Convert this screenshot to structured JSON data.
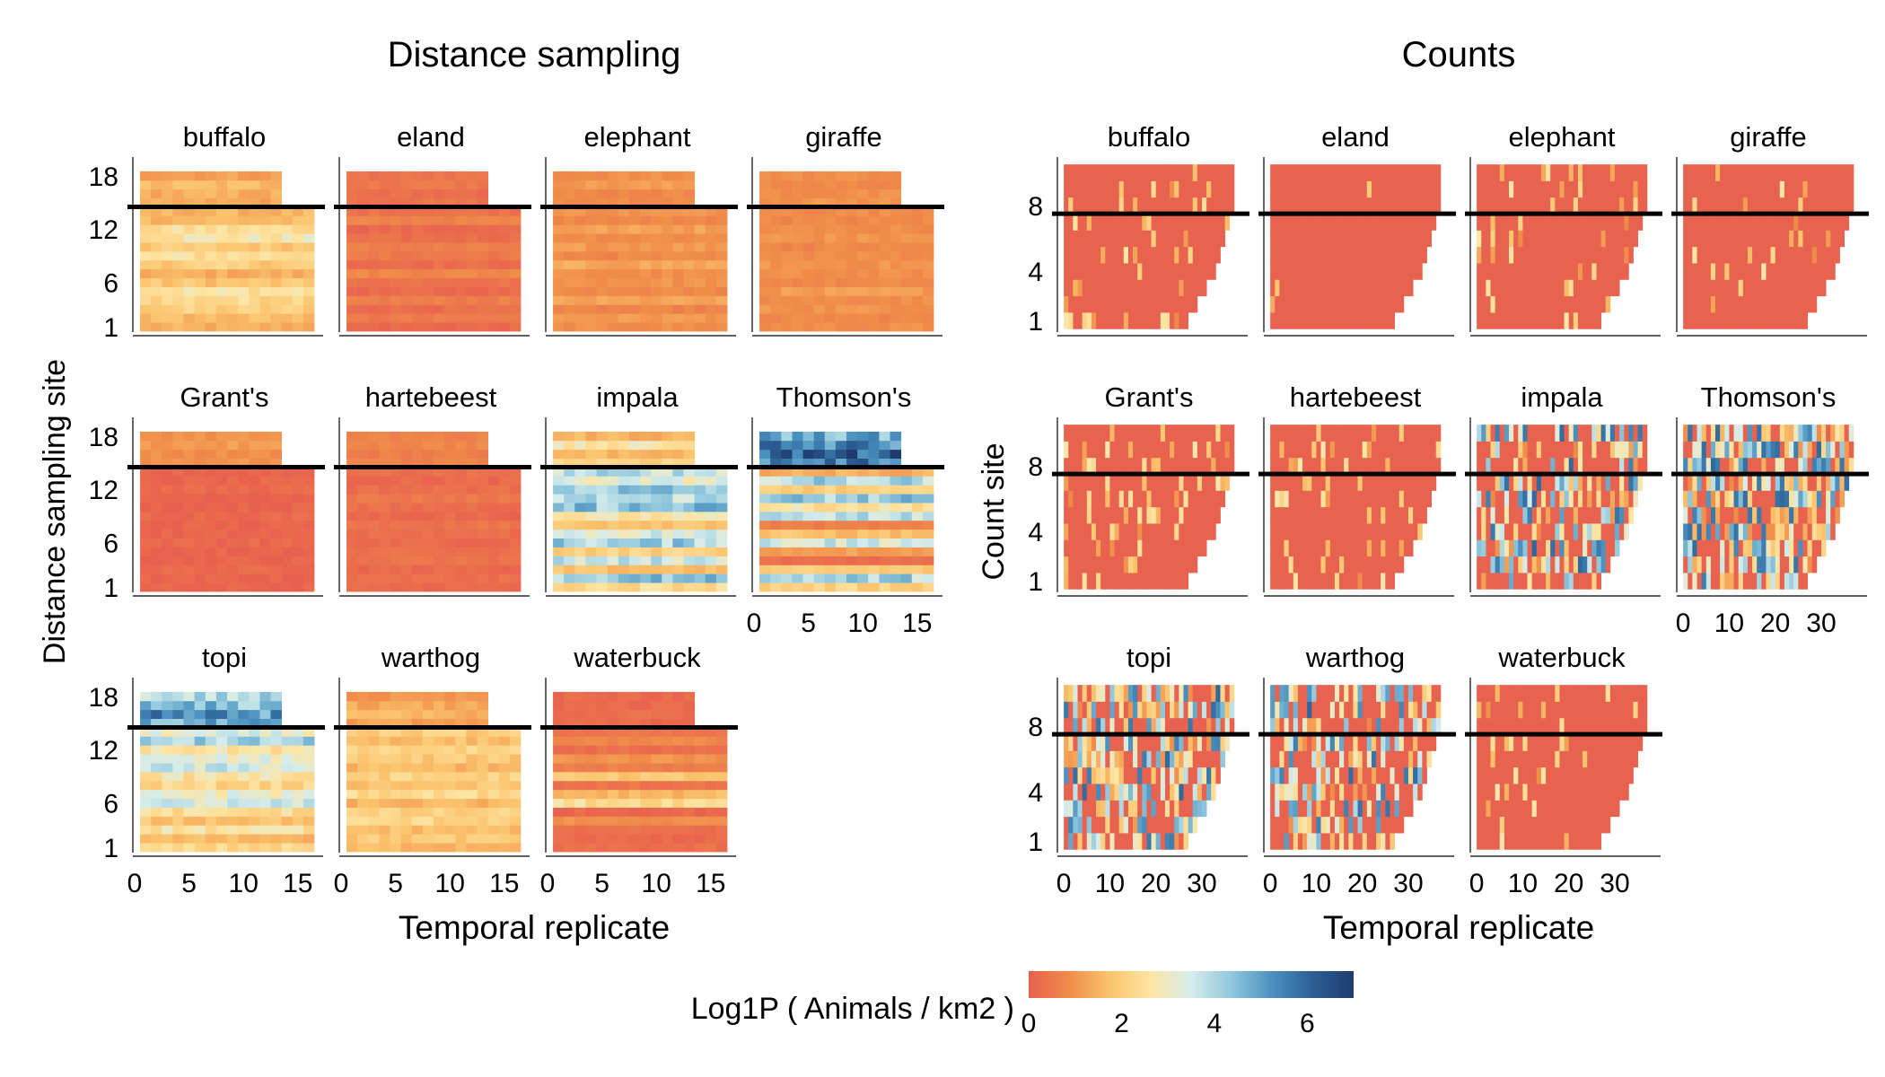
{
  "figure": {
    "legend_title": "Log1P ( Animals / km2 )",
    "colorscale": [
      "#e8604f",
      "#f08c4a",
      "#fbc46e",
      "#fde5a3",
      "#d6ecea",
      "#8fc7dd",
      "#4a90bf",
      "#2c5f94",
      "#1f3b6e"
    ],
    "background": "#ffffff",
    "threshold_line_color": "#000000"
  },
  "chart_data": [
    {
      "type": "heatmap",
      "title": "Distance sampling",
      "xlabel": "Temporal replicate",
      "ylabel": "Distance sampling site",
      "x_ticks": [
        0,
        5,
        10,
        15
      ],
      "y_ticks": [
        1,
        6,
        12,
        18
      ],
      "xlim": [
        0,
        16.5
      ],
      "ylim": [
        0.4,
        19.1
      ],
      "threshold_site": 14.5,
      "colorbar": {
        "label": "Log1P ( Animals / km2 )",
        "ticks": [
          0,
          2,
          4,
          6
        ],
        "range": [
          0,
          7
        ]
      },
      "panels": [
        {
          "species": "buffalo",
          "mean_values": [
            1.4,
            1.6,
            2.0,
            2.3,
            2.6,
            1.8,
            1.4,
            2.0,
            2.5,
            1.9,
            2.7,
            2.4,
            1.6,
            1.5,
            1.3,
            1.4,
            1.6,
            1.2
          ]
        },
        {
          "species": "eland",
          "mean_values": [
            0.2,
            0.5,
            0.3,
            0.6,
            0.2,
            0.4,
            0.8,
            0.3,
            0.5,
            0.6,
            0.3,
            0.2,
            0.7,
            0.4,
            0.4,
            0.3,
            0.5,
            0.4
          ]
        },
        {
          "species": "elephant",
          "mean_values": [
            0.9,
            1.1,
            0.7,
            1.2,
            0.8,
            1.0,
            0.9,
            1.3,
            0.8,
            1.1,
            0.9,
            1.2,
            0.8,
            1.0,
            0.9,
            0.8,
            1.1,
            0.9
          ]
        },
        {
          "species": "giraffe",
          "mean_values": [
            0.9,
            0.8,
            1.0,
            0.9,
            1.1,
            0.8,
            0.9,
            1.0,
            0.9,
            0.8,
            1.0,
            0.9,
            0.8,
            0.9,
            1.0,
            0.9,
            0.8,
            0.9
          ]
        },
        {
          "species": "Grant's",
          "mean_values": [
            0.1,
            0.1,
            0.2,
            0.1,
            0.1,
            0.2,
            0.1,
            0.1,
            0.2,
            0.1,
            0.1,
            0.2,
            0.1,
            0.1,
            1.0,
            0.9,
            1.1,
            1.0
          ]
        },
        {
          "species": "hartebeest",
          "mean_values": [
            0.2,
            0.3,
            0.2,
            0.4,
            0.3,
            0.2,
            0.3,
            0.4,
            0.2,
            0.3,
            0.5,
            0.3,
            0.2,
            0.3,
            0.7,
            0.6,
            0.8,
            0.7
          ]
        },
        {
          "species": "impala",
          "mean_values": [
            2.4,
            4.3,
            1.7,
            3.6,
            2.1,
            4.1,
            3.4,
            1.9,
            2.6,
            4.4,
            3.9,
            4.3,
            3.2,
            3.8,
            2.2,
            1.6,
            2.6,
            1.5
          ]
        },
        {
          "species": "Thomson's",
          "mean_values": [
            2.1,
            4.1,
            1.9,
            0.3,
            1.2,
            3.6,
            1.7,
            0.6,
            3.9,
            2.6,
            4.2,
            2.0,
            4.0,
            1.4,
            5.6,
            6.1,
            5.4,
            4.8
          ]
        },
        {
          "species": "topi",
          "mean_values": [
            2.2,
            1.6,
            2.6,
            1.8,
            2.4,
            3.4,
            3.1,
            2.2,
            2.6,
            3.5,
            3.1,
            2.6,
            4.0,
            3.2,
            4.6,
            5.2,
            4.4,
            3.9
          ]
        },
        {
          "species": "warthog",
          "mean_values": [
            1.6,
            1.9,
            1.7,
            2.2,
            2.0,
            1.5,
            2.3,
            1.8,
            2.1,
            1.6,
            1.9,
            2.2,
            1.7,
            2.0,
            1.2,
            1.5,
            1.3,
            1.0
          ]
        },
        {
          "species": "waterbuck",
          "mean_values": [
            0.3,
            0.2,
            0.3,
            0.9,
            0.2,
            2.4,
            1.6,
            0.4,
            1.8,
            0.6,
            1.0,
            0.3,
            0.8,
            0.4,
            0.2,
            0.3,
            0.2,
            0.2
          ]
        }
      ]
    },
    {
      "type": "heatmap",
      "title": "Counts",
      "xlabel": "Temporal replicate",
      "ylabel": "Count site",
      "x_ticks": [
        0,
        10,
        20,
        30
      ],
      "y_ticks": [
        1,
        4,
        8
      ],
      "xlim": [
        -1,
        38
      ],
      "ylim": [
        0.3,
        10.4
      ],
      "threshold_site": 7.5,
      "site_lengths": [
        27,
        29,
        31,
        33,
        34,
        35,
        36,
        37,
        37,
        37
      ],
      "colorbar": {
        "label": "Log1P ( Animals / km2 )",
        "ticks": [
          0,
          2,
          4,
          6
        ],
        "range": [
          0,
          7
        ]
      },
      "panels": [
        {
          "species": "buffalo",
          "sparsity": 0.12
        },
        {
          "species": "eland",
          "sparsity": 0.02
        },
        {
          "species": "elephant",
          "sparsity": 0.08
        },
        {
          "species": "giraffe",
          "sparsity": 0.05
        },
        {
          "species": "Grant's",
          "sparsity": 0.15
        },
        {
          "species": "hartebeest",
          "sparsity": 0.1
        },
        {
          "species": "impala",
          "sparsity": 0.45
        },
        {
          "species": "Thomson's",
          "sparsity": 0.7
        },
        {
          "species": "topi",
          "sparsity": 0.6
        },
        {
          "species": "warthog",
          "sparsity": 0.45
        },
        {
          "species": "waterbuck",
          "sparsity": 0.12
        }
      ]
    }
  ]
}
